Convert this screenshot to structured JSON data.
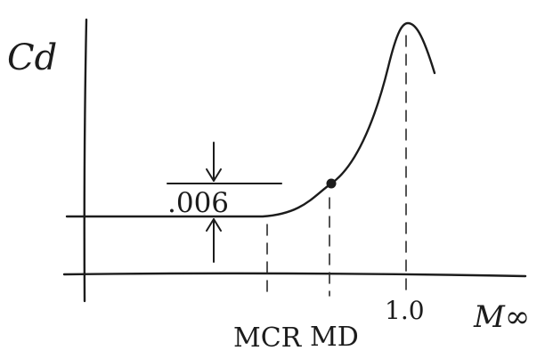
{
  "diagram": {
    "y_axis_label": "Cd",
    "x_axis_label": "M∞",
    "increment_label": ".006",
    "tick_labels": {
      "critical_mach": "MCR",
      "drag_divergence_mach": "MD",
      "mach_one": "1.0"
    }
  }
}
